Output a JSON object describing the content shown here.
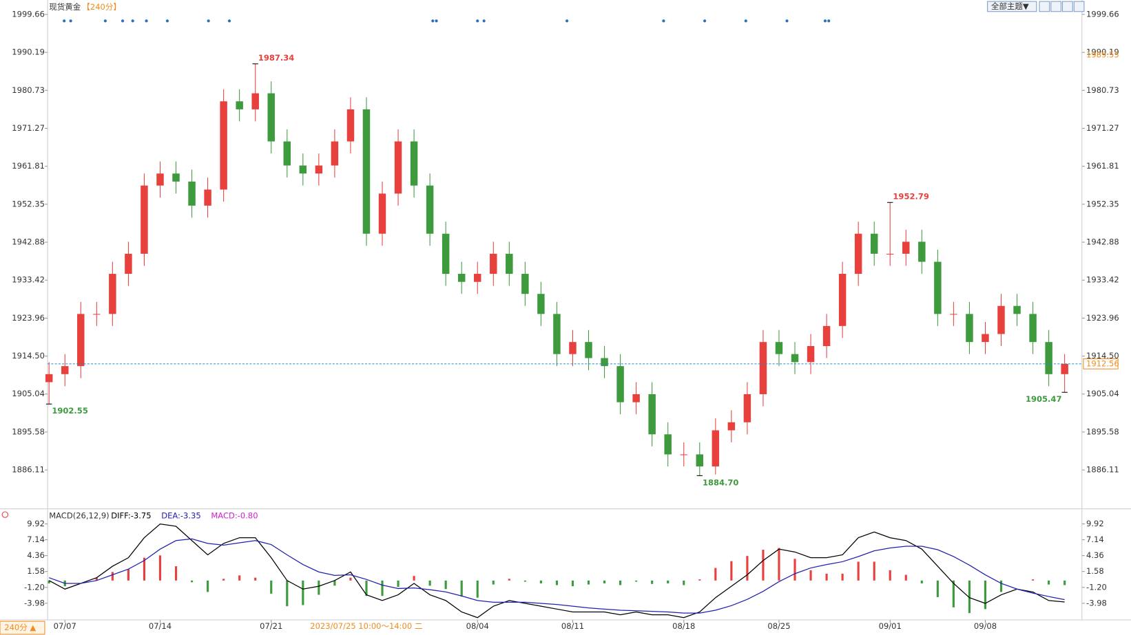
{
  "header": {
    "title": "现货黄金",
    "period": "【240分】",
    "theme_button": "全部主题▼"
  },
  "chart_data": [
    {
      "type": "candlestick",
      "up_color": "#e8403c",
      "down_color": "#3d9a3d",
      "categories": [
        null,
        "07/07",
        null,
        null,
        null,
        null,
        null,
        "07/14",
        null,
        null,
        null,
        null,
        null,
        null,
        "07/21",
        null,
        null,
        null,
        null,
        null,
        null,
        null,
        null,
        null,
        null,
        null,
        null,
        "08/04",
        null,
        null,
        null,
        null,
        null,
        "08/11",
        null,
        null,
        null,
        null,
        null,
        null,
        "08/18",
        null,
        null,
        null,
        null,
        null,
        "08/25",
        null,
        null,
        null,
        null,
        null,
        null,
        "09/01",
        null,
        null,
        null,
        null,
        null,
        "09/08",
        null,
        null,
        null,
        null,
        null
      ],
      "ohlc": [
        [
          1908,
          1913,
          1902.55,
          1910
        ],
        [
          1910,
          1915,
          1907,
          1912
        ],
        [
          1912,
          1928,
          1909,
          1925
        ],
        [
          1925,
          1928,
          1922,
          1925
        ],
        [
          1925,
          1938,
          1922,
          1935
        ],
        [
          1935,
          1943,
          1932,
          1940
        ],
        [
          1940,
          1960,
          1937,
          1957
        ],
        [
          1957,
          1963,
          1954,
          1960
        ],
        [
          1960,
          1963,
          1955,
          1958
        ],
        [
          1958,
          1961,
          1949,
          1952
        ],
        [
          1952,
          1959,
          1949,
          1956
        ],
        [
          1956,
          1981,
          1953,
          1978
        ],
        [
          1978,
          1981,
          1973,
          1976
        ],
        [
          1976,
          1987.34,
          1973,
          1980
        ],
        [
          1980,
          1983,
          1965,
          1968
        ],
        [
          1968,
          1971,
          1959,
          1962
        ],
        [
          1962,
          1965,
          1957,
          1960
        ],
        [
          1960,
          1965,
          1957,
          1962
        ],
        [
          1962,
          1971,
          1959,
          1968
        ],
        [
          1968,
          1979,
          1965,
          1976
        ],
        [
          1976,
          1979,
          1942,
          1945
        ],
        [
          1945,
          1958,
          1942,
          1955
        ],
        [
          1955,
          1971,
          1952,
          1968
        ],
        [
          1968,
          1971,
          1954,
          1957
        ],
        [
          1957,
          1960,
          1942,
          1945
        ],
        [
          1945,
          1948,
          1932,
          1935
        ],
        [
          1935,
          1938,
          1930,
          1933
        ],
        [
          1933,
          1938,
          1930,
          1935
        ],
        [
          1935,
          1943,
          1932,
          1940
        ],
        [
          1940,
          1943,
          1932,
          1935
        ],
        [
          1935,
          1938,
          1927,
          1930
        ],
        [
          1930,
          1933,
          1922,
          1925
        ],
        [
          1925,
          1928,
          1912,
          1915
        ],
        [
          1915,
          1921,
          1912,
          1918
        ],
        [
          1918,
          1921,
          1911,
          1914
        ],
        [
          1914,
          1917,
          1909,
          1912
        ],
        [
          1912,
          1915,
          1900,
          1903
        ],
        [
          1903,
          1908,
          1900,
          1905
        ],
        [
          1905,
          1908,
          1892,
          1895
        ],
        [
          1895,
          1898,
          1887,
          1890
        ],
        [
          1890,
          1893,
          1887,
          1890
        ],
        [
          1890,
          1893,
          1884.7,
          1887
        ],
        [
          1887,
          1899,
          1885,
          1896
        ],
        [
          1896,
          1901,
          1893,
          1898
        ],
        [
          1898,
          1908,
          1895,
          1905
        ],
        [
          1905,
          1921,
          1902,
          1918
        ],
        [
          1918,
          1921,
          1912,
          1915
        ],
        [
          1915,
          1918,
          1910,
          1913
        ],
        [
          1913,
          1920,
          1910,
          1917
        ],
        [
          1917,
          1925,
          1914,
          1922
        ],
        [
          1922,
          1938,
          1919,
          1935
        ],
        [
          1935,
          1948,
          1932,
          1945
        ],
        [
          1945,
          1948,
          1937,
          1940
        ],
        [
          1940,
          1952.79,
          1937,
          1940
        ],
        [
          1940,
          1946,
          1937,
          1943
        ],
        [
          1943,
          1946,
          1935,
          1938
        ],
        [
          1938,
          1941,
          1922,
          1925
        ],
        [
          1925,
          1928,
          1922,
          1925
        ],
        [
          1925,
          1928,
          1915,
          1918
        ],
        [
          1918,
          1923,
          1915,
          1920
        ],
        [
          1920,
          1930,
          1917,
          1927
        ],
        [
          1927,
          1930,
          1922,
          1925
        ],
        [
          1925,
          1928,
          1915,
          1918
        ],
        [
          1918,
          1921,
          1907,
          1910
        ],
        [
          1910,
          1915,
          1905.47,
          1912.56
        ]
      ],
      "ylim": [
        1876.6,
        2003.25
      ],
      "yticks": [
        1886.11,
        1895.58,
        1905.04,
        {
          "value": 1914.5,
          "label": "1914.50"
        },
        1923.96,
        1933.42,
        1942.88,
        1952.35,
        1961.81,
        1971.27,
        1980.73,
        1990.19,
        1999.66
      ],
      "last_price": 1912.56,
      "last_price_color": "#2a8ac8",
      "marker_price": 1989.55,
      "marker_color": "#f08c1e",
      "annotations": [
        1987.34,
        1952.79,
        1902.55,
        {
          "value": 1884.7,
          "label": "1884.70"
        },
        1905.47
      ]
    },
    {
      "type": "macd",
      "title": "MACD(26,12,9)",
      "series": [
        {
          "name": "DIFF:-3.75",
          "color": "#000000",
          "values": [
            0,
            -1.5,
            -0.5,
            0.5,
            2.5,
            4,
            7.5,
            9.9,
            9.5,
            7,
            4.5,
            6.5,
            7.5,
            7.5,
            4,
            0,
            -1.5,
            -1,
            0,
            1.5,
            -2.5,
            -3.5,
            -2.5,
            -0.5,
            -2.5,
            -3.5,
            -5.5,
            -6.5,
            -4.5,
            -3.5,
            -4,
            -4.5,
            -5,
            -5.5,
            -5.5,
            -5.5,
            -6,
            -5.5,
            -6,
            -6,
            -6.5,
            -5.5,
            -3,
            -1,
            1,
            3.5,
            5.5,
            5,
            4,
            4,
            4.5,
            7.5,
            8.5,
            7.5,
            7,
            5.5,
            2.5,
            -0.5,
            -3,
            -4,
            -2.5,
            -1.5,
            -2,
            -3.5,
            -3.75
          ]
        },
        {
          "name": "DEA:-3.35",
          "color": "#2020b0",
          "values": [
            0.5,
            -0.5,
            -0.5,
            0,
            1,
            2,
            3.5,
            5.5,
            7,
            7.3,
            6.5,
            6.2,
            6.6,
            7,
            6.3,
            4.5,
            2.8,
            1.5,
            0.9,
            1.0,
            0.2,
            -0.8,
            -1.4,
            -1.3,
            -1.6,
            -2,
            -2.7,
            -3.5,
            -3.8,
            -3.8,
            -3.8,
            -4,
            -4.2,
            -4.5,
            -4.8,
            -5,
            -5.2,
            -5.3,
            -5.4,
            -5.5,
            -5.7,
            -5.7,
            -5.2,
            -4.4,
            -3.3,
            -1.9,
            -0.2,
            1.2,
            2.2,
            2.8,
            3.3,
            4.2,
            5.2,
            5.7,
            6,
            6,
            5.4,
            4.2,
            2.7,
            1.0,
            -0.5,
            -1.5,
            -2.2,
            -2.8,
            -3.35
          ]
        },
        {
          "name": "MACD:-0.80",
          "color": "#d020d0",
          "up_color": "#e8403c",
          "down_color": "#3d9a3d",
          "values": [
            -0.5,
            -1,
            0,
            0.5,
            1.5,
            2,
            4,
            4.4,
            2.5,
            -0.3,
            -2,
            0.3,
            0.9,
            0.5,
            -2.3,
            -4.5,
            -4.3,
            -2.5,
            -0.9,
            0.5,
            -2.7,
            -2.7,
            -1.1,
            0.8,
            -0.9,
            -1.5,
            -2.8,
            -3,
            -0.7,
            0.3,
            -0.2,
            -0.5,
            -0.8,
            -1,
            -0.7,
            -0.5,
            -0.8,
            -0.2,
            -0.6,
            -0.5,
            -0.8,
            0.2,
            2.2,
            3.4,
            4.3,
            5.4,
            5.7,
            3.8,
            1.8,
            1.2,
            1.2,
            3.3,
            3.3,
            1.8,
            1,
            -0.5,
            -2.9,
            -4.7,
            -5.7,
            -5,
            -2,
            0,
            0.2,
            -0.7,
            -0.8
          ]
        }
      ],
      "ylim": [
        -6.89,
        12.3
      ],
      "yticks": [
        9.92,
        7.14,
        4.36,
        1.58,
        {
          "value": -1.2,
          "label": "-1.20"
        },
        -3.98
      ]
    }
  ],
  "footer": {
    "period_button": "240分 ▲",
    "cursor_label": "2023/07/25 10:00～14:00 二"
  }
}
